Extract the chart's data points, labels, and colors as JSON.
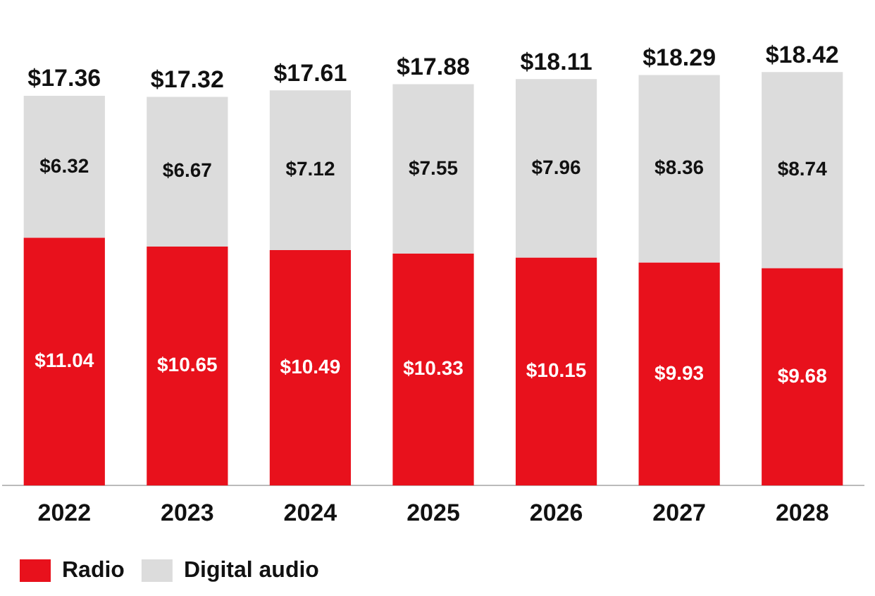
{
  "chart_data": {
    "type": "bar",
    "stacked": true,
    "categories": [
      "2022",
      "2023",
      "2024",
      "2025",
      "2026",
      "2027",
      "2028"
    ],
    "series": [
      {
        "name": "Radio",
        "color": "#e8111c",
        "values": [
          11.04,
          10.65,
          10.49,
          10.33,
          10.15,
          9.93,
          9.68
        ],
        "value_labels": [
          "$11.04",
          "$10.65",
          "$10.49",
          "$10.33",
          "$10.15",
          "$9.93",
          "$9.68"
        ]
      },
      {
        "name": "Digital audio",
        "color": "#dcdcdc",
        "values": [
          6.32,
          6.67,
          7.12,
          7.55,
          7.96,
          8.36,
          8.74
        ],
        "value_labels": [
          "$6.32",
          "$6.67",
          "$7.12",
          "$7.55",
          "$7.96",
          "$8.36",
          "$8.74"
        ]
      }
    ],
    "totals": [
      "$17.36",
      "$17.32",
      "$17.61",
      "$17.88",
      "$18.11",
      "$18.29",
      "$18.42"
    ],
    "tick_labels": "x",
    "grid": false,
    "legend": "bottom left"
  }
}
